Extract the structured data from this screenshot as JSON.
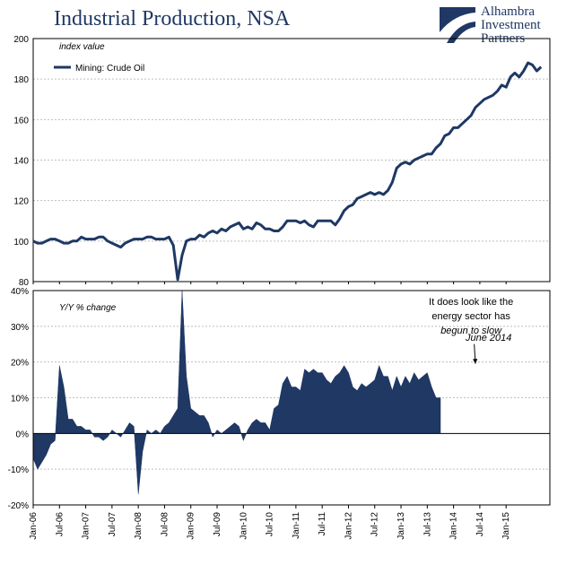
{
  "title": "Industrial Production, NSA",
  "logo": {
    "line1": "Alhambra",
    "line2": "Investment",
    "line3": "Partners"
  },
  "colors": {
    "series": "#1f3864",
    "grid": "#bfbfbf",
    "text": "#000000",
    "title": "#1f3864"
  },
  "chart_data": [
    {
      "type": "line",
      "subtitle": "index value",
      "legend": {
        "label": "Mining:  Crude Oil",
        "placement": "top-left"
      },
      "ylim": [
        80,
        200
      ],
      "yticks": [
        80,
        100,
        120,
        140,
        160,
        180,
        200
      ],
      "grid": true,
      "x_start": "2006-01",
      "x_freq": "monthly",
      "series": [
        {
          "name": "Mining:  Crude Oil",
          "values": [
            100,
            99,
            99,
            100,
            101,
            101,
            100,
            99,
            99,
            100,
            100,
            102,
            101,
            101,
            101,
            102,
            102,
            100,
            99,
            98,
            97,
            99,
            100,
            101,
            101,
            101,
            102,
            102,
            101,
            101,
            101,
            102,
            98,
            81,
            93,
            100,
            101,
            101,
            103,
            102,
            104,
            105,
            104,
            106,
            105,
            107,
            108,
            109,
            106,
            107,
            106,
            109,
            108,
            106,
            106,
            105,
            105,
            107,
            110,
            110,
            110,
            109,
            110,
            108,
            107,
            110,
            110,
            110,
            110,
            108,
            111,
            115,
            117,
            118,
            121,
            122,
            123,
            124,
            123,
            124,
            123,
            125,
            129,
            136,
            138,
            139,
            138,
            140,
            141,
            142,
            143,
            143,
            146,
            148,
            152,
            153,
            156,
            156,
            158,
            160,
            162,
            166,
            168,
            170,
            171,
            172,
            174,
            177,
            176,
            181,
            183,
            181,
            184,
            188,
            187,
            184,
            186
          ]
        }
      ]
    },
    {
      "type": "area",
      "subtitle": "Y/Y % change",
      "ylim": [
        -20,
        40
      ],
      "yticks": [
        -20,
        -10,
        0,
        10,
        20,
        30,
        40
      ],
      "ytick_labels": [
        "-20%",
        "-10%",
        "0%",
        "10%",
        "20%",
        "30%",
        "40%"
      ],
      "grid": true,
      "x_start": "2006-01",
      "x_freq": "monthly",
      "series": [
        {
          "name": "Y/Y % change",
          "values": [
            -7,
            -10,
            -8,
            -6,
            -3,
            -2,
            19,
            13,
            4,
            4,
            2,
            2,
            1,
            1,
            -1,
            -1,
            -2,
            -1,
            1,
            0,
            -1,
            1,
            3,
            2,
            -17,
            -5,
            1,
            0,
            1,
            0,
            2,
            3,
            5,
            7,
            40,
            16,
            7,
            6,
            5,
            5,
            3,
            -1,
            1,
            0,
            1,
            2,
            3,
            2,
            -2,
            1,
            3,
            4,
            3,
            3,
            1,
            7,
            8,
            14,
            16,
            13,
            13,
            12,
            18,
            17,
            18,
            17,
            17,
            15,
            14,
            16,
            17,
            19,
            17,
            13,
            12,
            14,
            13,
            14,
            15,
            19,
            16,
            16,
            12,
            16,
            13,
            16,
            14,
            17,
            15,
            16,
            17,
            13,
            10,
            10
          ]
        }
      ],
      "annotations": [
        {
          "text": "It does look like the",
          "x": "2014-05",
          "y": 36
        },
        {
          "text": "energy sector has",
          "x": "2014-05",
          "y": 32
        },
        {
          "text": "begun to slow",
          "x": "2014-05",
          "y": 28
        },
        {
          "text": "June 2014",
          "x": "2014-09",
          "y": 26,
          "arrow_to": {
            "x": "2014-06",
            "y": 19
          }
        }
      ]
    }
  ],
  "x_tick_labels": [
    "Jan-06",
    "Jul-06",
    "Jan-07",
    "Jul-07",
    "Jan-08",
    "Jul-08",
    "Jan-09",
    "Jul-09",
    "Jan-10",
    "Jul-10",
    "Jan-11",
    "Jul-11",
    "Jan-12",
    "Jul-12",
    "Jan-13",
    "Jul-13",
    "Jan-14",
    "Jul-14",
    "Jan-15"
  ]
}
